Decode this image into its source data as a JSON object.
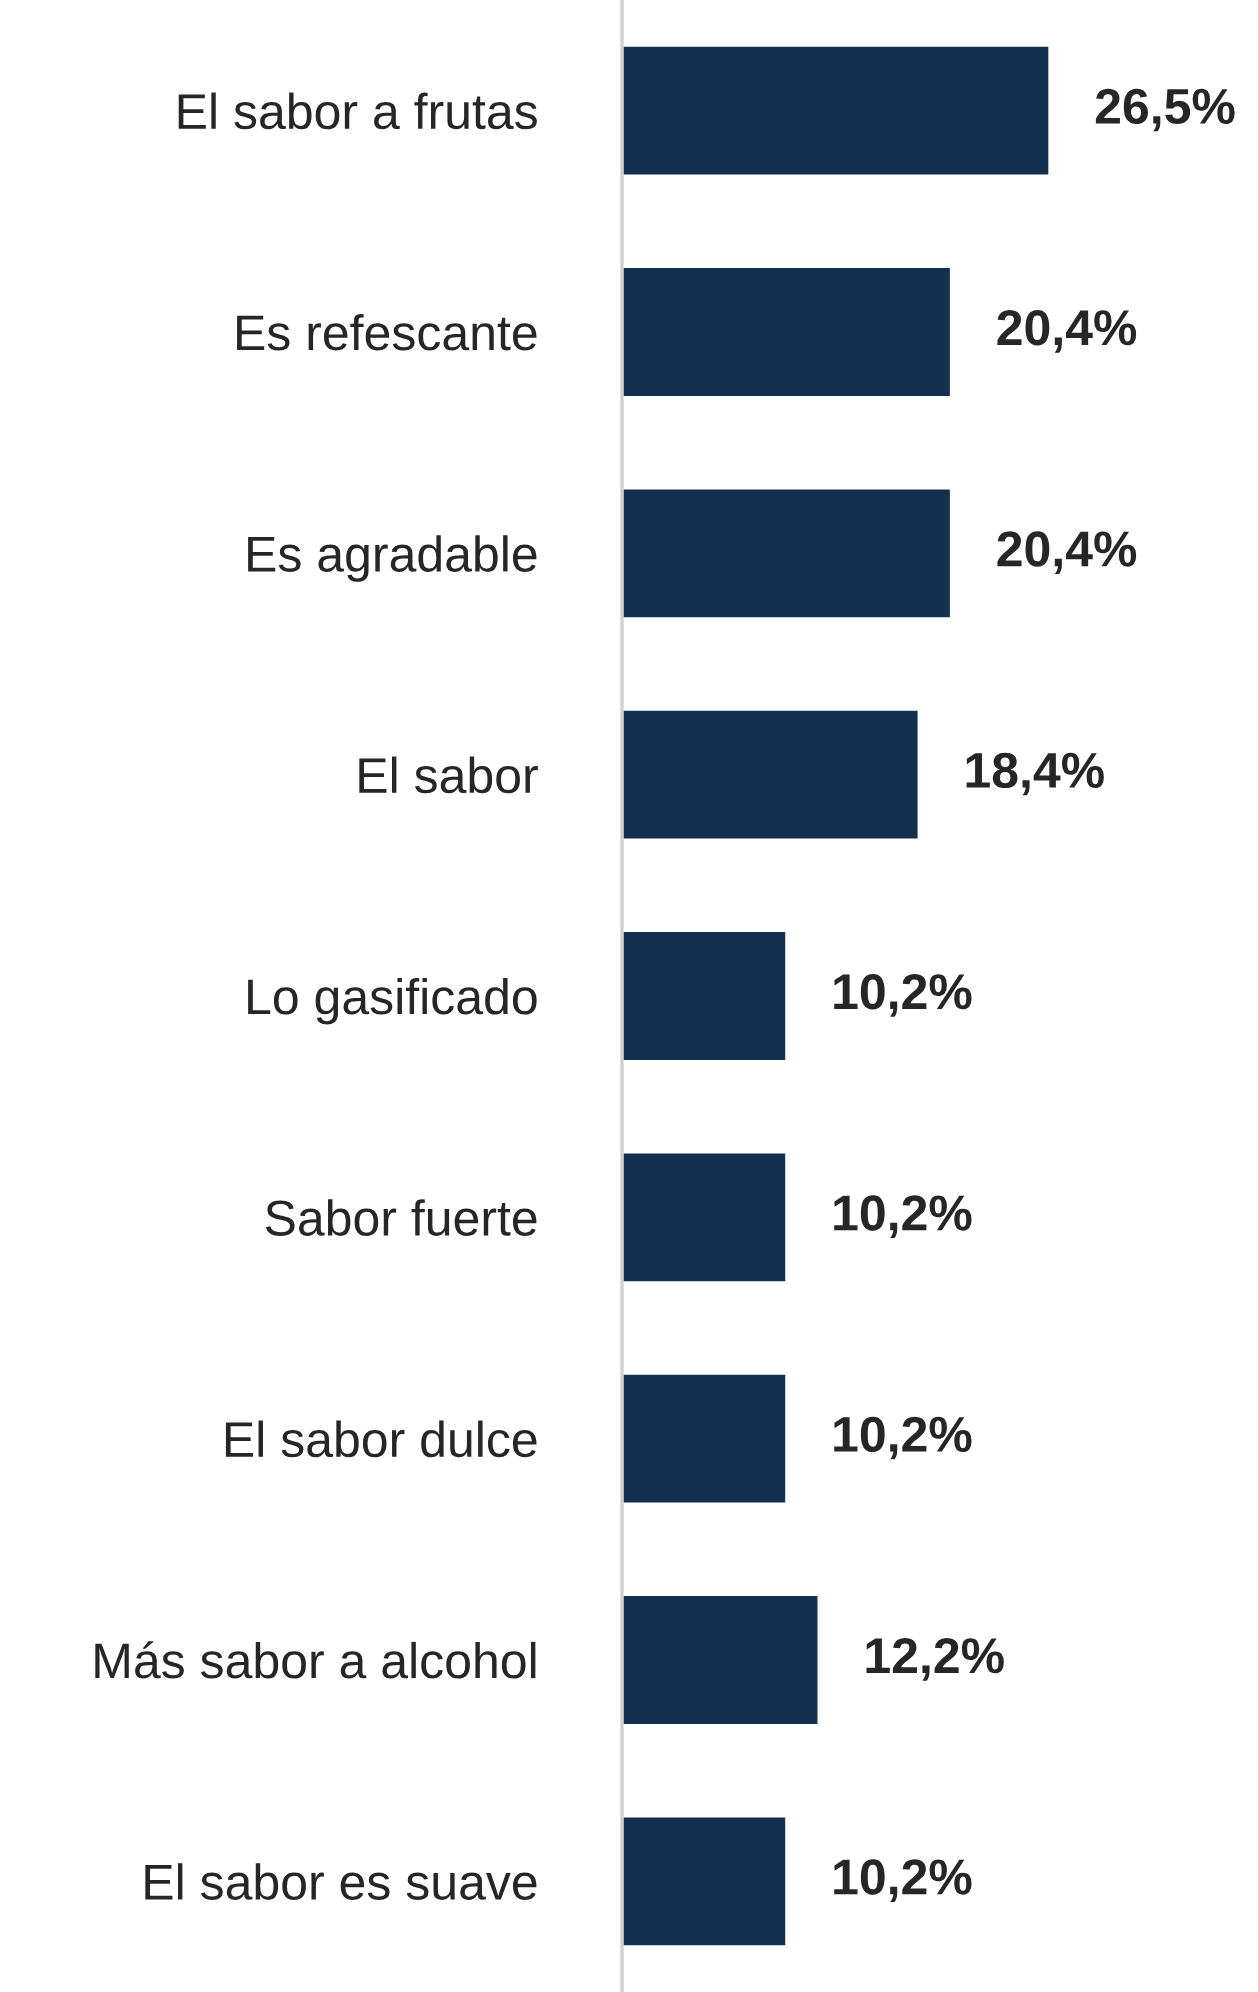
{
  "chart_data": {
    "type": "bar",
    "orientation": "horizontal",
    "categories": [
      "El sabor a frutas",
      "Es refescante",
      "Es agradable",
      "El sabor",
      "Lo gasificado",
      "Sabor fuerte",
      "El sabor dulce",
      "Más sabor a alcohol",
      "El sabor es suave"
    ],
    "values": [
      26.5,
      20.4,
      20.4,
      18.4,
      10.2,
      10.2,
      10.2,
      12.2,
      10.2
    ],
    "value_labels": [
      "26,5%",
      "20,4%",
      "20,4%",
      "18,4%",
      "10,2%",
      "10,2%",
      "10,2%",
      "12,2%",
      "10,2%"
    ],
    "color": "#14304f",
    "grid": false,
    "legend": false
  }
}
